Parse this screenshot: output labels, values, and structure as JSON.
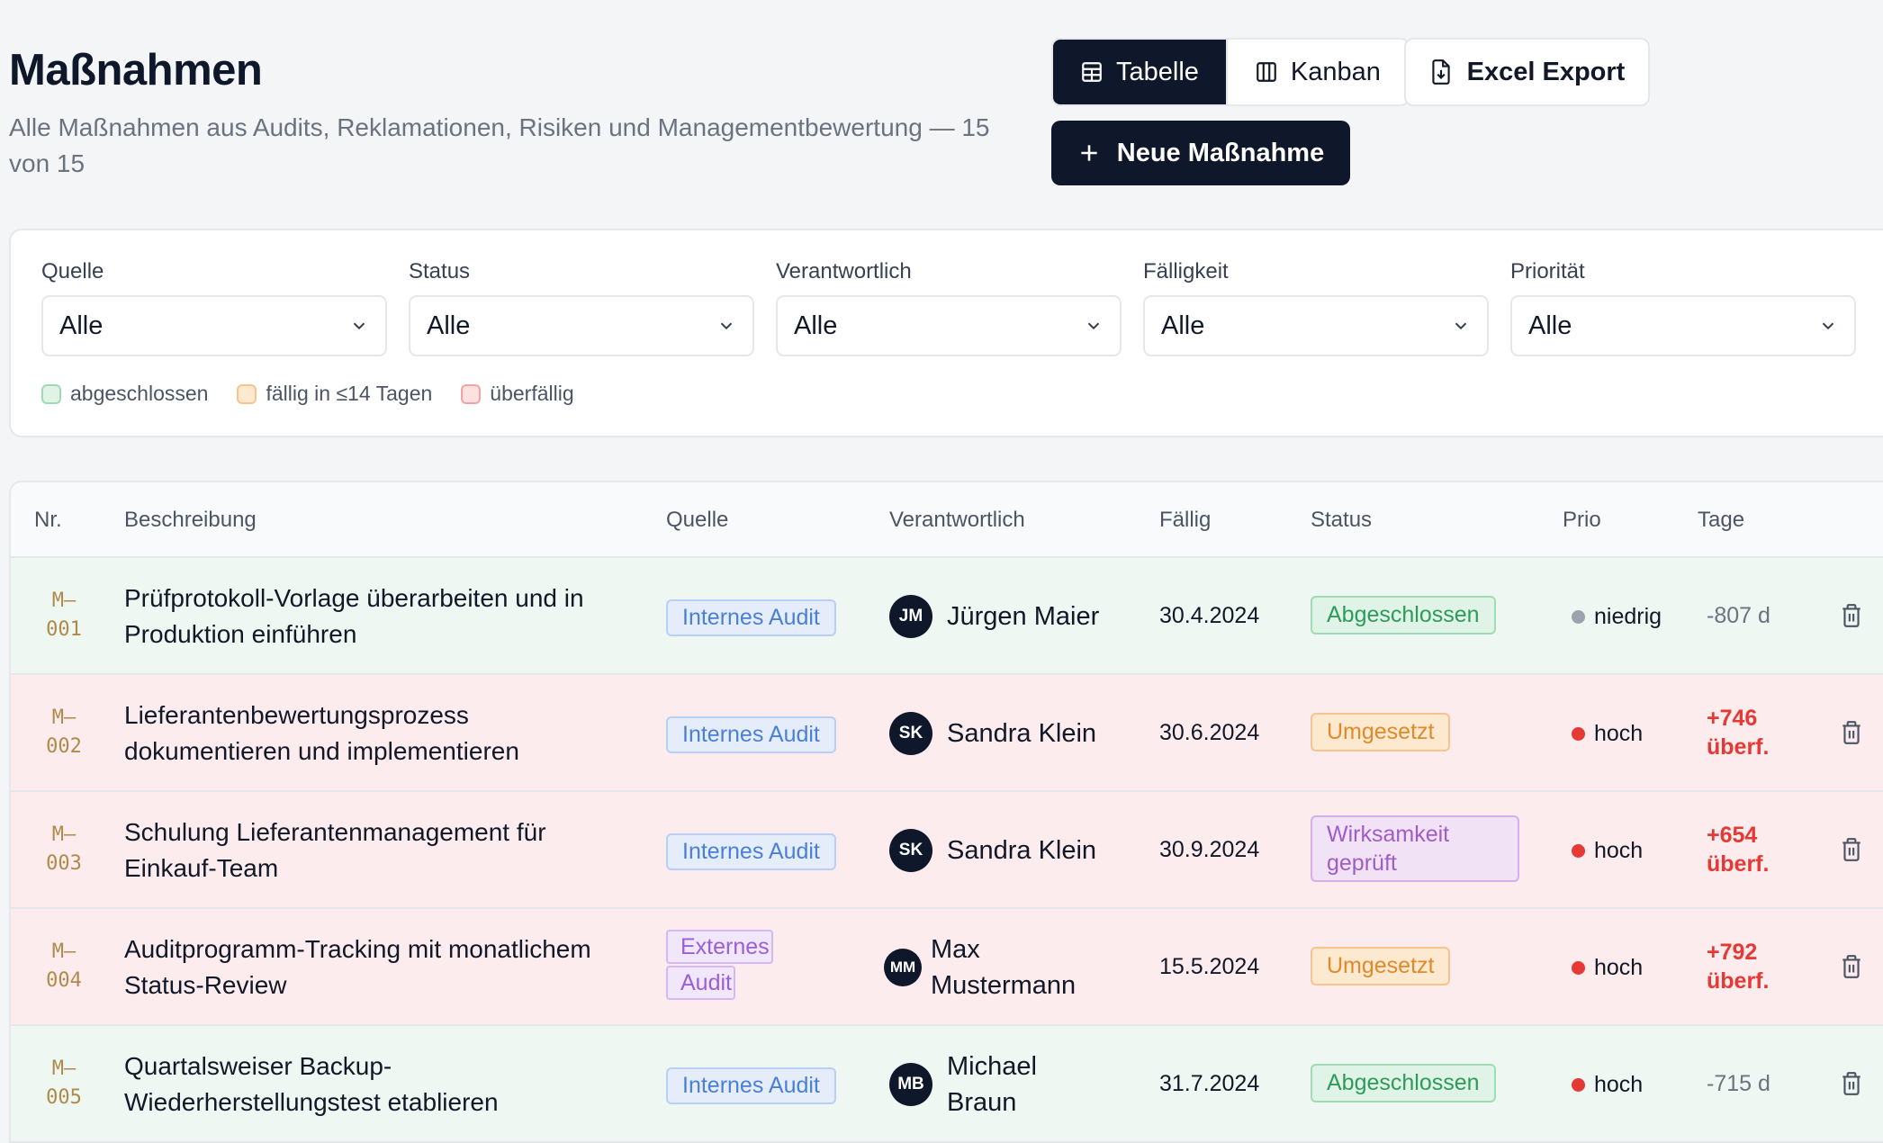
{
  "header": {
    "title": "Maßnahmen",
    "subtitle": "Alle Maßnahmen aus Audits, Reklamationen, Risiken und Managementbewertung — 15 von 15"
  },
  "toolbar": {
    "view_table": "Tabelle",
    "view_kanban": "Kanban",
    "excel_export": "Excel Export",
    "new_action": "Neue Maßnahme"
  },
  "filters": [
    {
      "label": "Quelle",
      "value": "Alle"
    },
    {
      "label": "Status",
      "value": "Alle"
    },
    {
      "label": "Verantwortlich",
      "value": "Alle"
    },
    {
      "label": "Fälligkeit",
      "value": "Alle"
    },
    {
      "label": "Priorität",
      "value": "Alle"
    }
  ],
  "legend": {
    "done": "abgeschlossen",
    "soon": "fällig in ≤14 Tagen",
    "overdue": "überfällig"
  },
  "table": {
    "columns": {
      "nr": "Nr.",
      "desc": "Beschreibung",
      "source": "Quelle",
      "resp": "Verantwortlich",
      "due": "Fällig",
      "status": "Status",
      "prio": "Prio",
      "days": "Tage"
    },
    "rows": [
      {
        "nr_a": "M–",
        "nr_b": "001",
        "desc": "Prüfprotokoll-Vorlage überarbeiten und in Produktion einführen",
        "source": "Internes Audit",
        "initials": "JM",
        "name": "Jürgen Maier",
        "due": "30.4.2024",
        "status": "Abgeschlossen",
        "prio": "niedrig",
        "days_a": "-807 d",
        "days_b": ""
      },
      {
        "nr_a": "M–",
        "nr_b": "002",
        "desc": "Lieferantenbewertungsprozess dokumentieren und implementieren",
        "source": "Internes Audit",
        "initials": "SK",
        "name": "Sandra Klein",
        "due": "30.6.2024",
        "status": "Umgesetzt",
        "prio": "hoch",
        "days_a": "+746",
        "days_b": "überf."
      },
      {
        "nr_a": "M–",
        "nr_b": "003",
        "desc": "Schulung Lieferantenmanagement für Einkauf-Team",
        "source": "Internes Audit",
        "initials": "SK",
        "name": "Sandra Klein",
        "due": "30.9.2024",
        "status": "Wirksamkeit geprüft",
        "prio": "hoch",
        "days_a": "+654",
        "days_b": "überf."
      },
      {
        "nr_a": "M–",
        "nr_b": "004",
        "desc": "Auditprogramm-Tracking mit monatlichem Status-Review",
        "source": "Externes Audit",
        "initials": "MM",
        "name": "Max Mustermann",
        "due": "15.5.2024",
        "status": "Umgesetzt",
        "prio": "hoch",
        "days_a": "+792",
        "days_b": "überf."
      },
      {
        "nr_a": "M–",
        "nr_b": "005",
        "desc": "Quartalsweiser Backup-Wiederherstellungstest etablieren",
        "source": "Internes Audit",
        "initials": "MB",
        "name": "Michael Braun",
        "due": "31.7.2024",
        "status": "Abgeschlossen",
        "prio": "hoch",
        "days_a": "-715 d",
        "days_b": ""
      }
    ]
  },
  "colors": {
    "primary": "#0f172a",
    "done_row": "#eef7f1",
    "overdue_row": "#fdeced",
    "overdue_text": "#e53935"
  }
}
